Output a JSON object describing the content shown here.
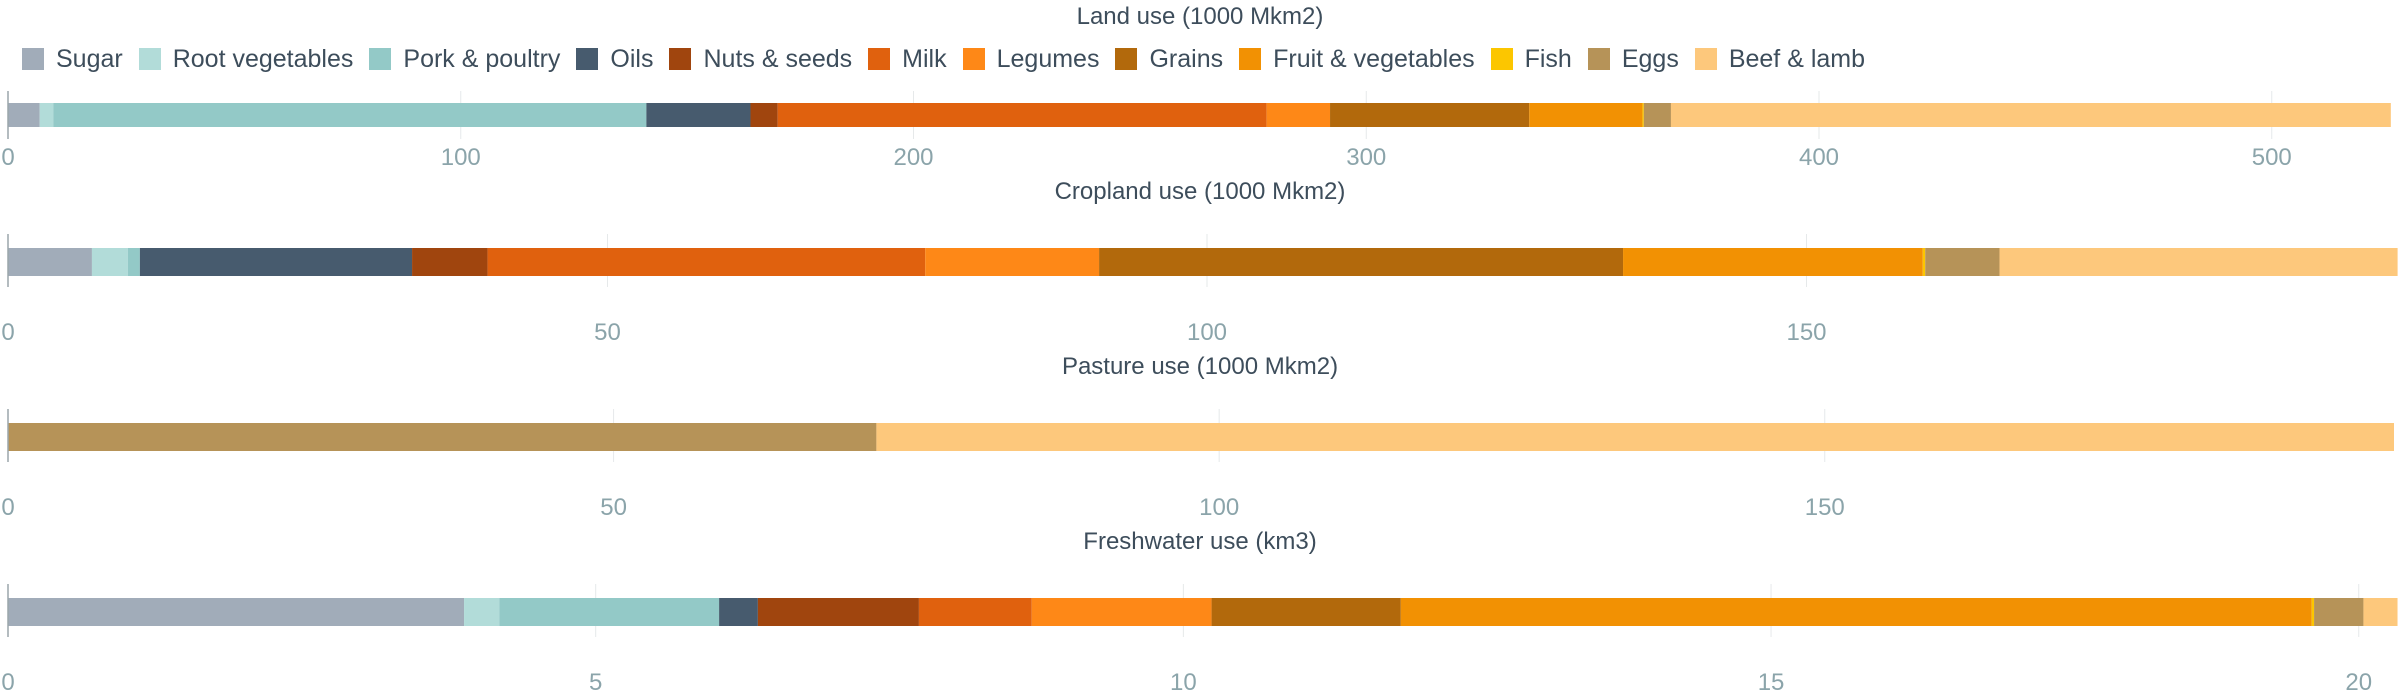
{
  "colors": {
    "Sugar": "#a1acb9",
    "Root vegetables": "#b2dcd9",
    "Pork & poultry": "#93c9c7",
    "Oils": "#475b6e",
    "Nuts & seeds": "#a0450e",
    "Milk": "#e0610e",
    "Legumes": "#fe8817",
    "Grains": "#b2690c",
    "Fruit & vegetables": "#f29103",
    "Fish": "#fcc600",
    "Eggs": "#b69358",
    "Beef & lamb": "#fdc87c"
  },
  "chart_data": [
    {
      "type": "bar",
      "orientation": "horizontal-stacked",
      "title": "Land use (1000 Mkm2)",
      "xlim": [
        0,
        527
      ],
      "ticks": [
        0,
        100,
        200,
        300,
        400,
        500
      ],
      "series": [
        {
          "name": "Sugar",
          "value": 7
        },
        {
          "name": "Root vegetables",
          "value": 3
        },
        {
          "name": "Pork & poultry",
          "value": 131
        },
        {
          "name": "Oils",
          "value": 23
        },
        {
          "name": "Nuts & seeds",
          "value": 6
        },
        {
          "name": "Milk",
          "value": 108
        },
        {
          "name": "Legumes",
          "value": 14
        },
        {
          "name": "Grains",
          "value": 44
        },
        {
          "name": "Fruit & vegetables",
          "value": 25
        },
        {
          "name": "Fish",
          "value": 0.3
        },
        {
          "name": "Eggs",
          "value": 6
        },
        {
          "name": "Beef & lamb",
          "value": 159
        }
      ]
    },
    {
      "type": "bar",
      "orientation": "horizontal-stacked",
      "title": "Cropland use (1000 Mkm2)",
      "xlim": [
        0,
        199
      ],
      "ticks": [
        0,
        50,
        100,
        150
      ],
      "series": [
        {
          "name": "Sugar",
          "value": 7
        },
        {
          "name": "Root vegetables",
          "value": 3
        },
        {
          "name": "Pork & poultry",
          "value": 1
        },
        {
          "name": "Oils",
          "value": 22.7
        },
        {
          "name": "Nuts & seeds",
          "value": 6.3
        },
        {
          "name": "Milk",
          "value": 36.5
        },
        {
          "name": "Legumes",
          "value": 14.5
        },
        {
          "name": "Grains",
          "value": 43.7
        },
        {
          "name": "Fruit & vegetables",
          "value": 25
        },
        {
          "name": "Fish",
          "value": 0.2
        },
        {
          "name": "Eggs",
          "value": 6.2
        },
        {
          "name": "Beef & lamb",
          "value": 33.2
        }
      ]
    },
    {
      "type": "bar",
      "orientation": "horizontal-stacked",
      "title": "Pasture use (1000 Mkm2)",
      "xlim": [
        0,
        197
      ],
      "ticks": [
        0,
        50,
        100,
        150
      ],
      "series": [
        {
          "name": "Eggs",
          "value": 71.7
        },
        {
          "name": "Beef & lamb",
          "value": 125.3
        }
      ]
    },
    {
      "type": "bar",
      "orientation": "horizontal-stacked",
      "title": "Freshwater use (km3)",
      "xlim": [
        0,
        20.3
      ],
      "ticks": [
        0,
        5,
        10,
        15,
        20
      ],
      "series": [
        {
          "name": "Sugar",
          "value": 3.88
        },
        {
          "name": "Root vegetables",
          "value": 0.3
        },
        {
          "name": "Pork & poultry",
          "value": 1.87
        },
        {
          "name": "Oils",
          "value": 0.33
        },
        {
          "name": "Nuts & seeds",
          "value": 1.37
        },
        {
          "name": "Milk",
          "value": 0.96
        },
        {
          "name": "Legumes",
          "value": 1.53
        },
        {
          "name": "Grains",
          "value": 1.61
        },
        {
          "name": "Fruit & vegetables",
          "value": 7.75
        },
        {
          "name": "Fish",
          "value": 0.02
        },
        {
          "name": "Eggs",
          "value": 0.42
        },
        {
          "name": "Beef & lamb",
          "value": 0.29
        }
      ]
    }
  ],
  "legend": {
    "position": "top-left",
    "items": [
      "Sugar",
      "Root vegetables",
      "Pork & poultry",
      "Oils",
      "Nuts & seeds",
      "Milk",
      "Legumes",
      "Grains",
      "Fruit & vegetables",
      "Fish",
      "Eggs",
      "Beef & lamb"
    ]
  }
}
